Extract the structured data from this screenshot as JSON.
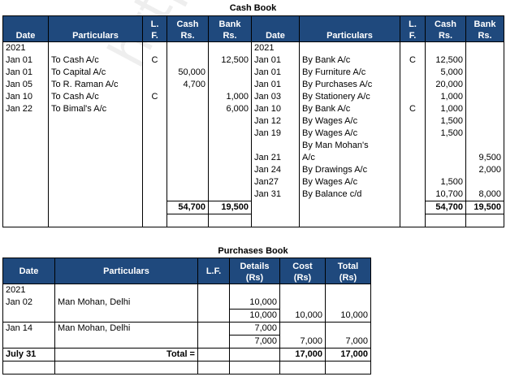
{
  "cash_book": {
    "title": "Cash Book",
    "headers": {
      "date": "Date",
      "particulars": "Particulars",
      "lf_1": "L.",
      "lf_2": "F.",
      "cash_1": "Cash",
      "cash_2": "Rs.",
      "bank_1": "Bank",
      "bank_2": "Rs."
    },
    "rows": [
      {
        "d_date": "2021",
        "d_part": "",
        "d_lf": "",
        "d_cash": "",
        "d_bank": "",
        "c_date": "2021",
        "c_part": "",
        "c_lf": "",
        "c_cash": "",
        "c_bank": ""
      },
      {
        "d_date": "Jan 01",
        "d_part": "To Cash A/c",
        "d_lf": "C",
        "d_cash": "",
        "d_bank": "12,500",
        "c_date": "Jan 01",
        "c_part": "By Bank A/c",
        "c_lf": "C",
        "c_cash": "12,500",
        "c_bank": ""
      },
      {
        "d_date": "Jan 01",
        "d_part": "To Capital A/c",
        "d_lf": "",
        "d_cash": "50,000",
        "d_bank": "",
        "c_date": "Jan 01",
        "c_part": "By Furniture A/c",
        "c_lf": "",
        "c_cash": "5,000",
        "c_bank": ""
      },
      {
        "d_date": "Jan 05",
        "d_part": "To R. Raman A/c",
        "d_lf": "",
        "d_cash": "4,700",
        "d_bank": "",
        "c_date": "Jan 01",
        "c_part": "By Purchases A/c",
        "c_lf": "",
        "c_cash": "20,000",
        "c_bank": ""
      },
      {
        "d_date": "Jan 10",
        "d_part": "To Cash A/c",
        "d_lf": "C",
        "d_cash": "",
        "d_bank": "1,000",
        "c_date": "Jan 03",
        "c_part": "By Stationery A/c",
        "c_lf": "",
        "c_cash": "1,000",
        "c_bank": ""
      },
      {
        "d_date": "Jan 22",
        "d_part": "To Bimal's A/c",
        "d_lf": "",
        "d_cash": "",
        "d_bank": "6,000",
        "c_date": "Jan 10",
        "c_part": "By Bank A/c",
        "c_lf": "C",
        "c_cash": "1,000",
        "c_bank": ""
      },
      {
        "d_date": "",
        "d_part": "",
        "d_lf": "",
        "d_cash": "",
        "d_bank": "",
        "c_date": "Jan 12",
        "c_part": "By Wages A/c",
        "c_lf": "",
        "c_cash": "1,500",
        "c_bank": ""
      },
      {
        "d_date": "",
        "d_part": "",
        "d_lf": "",
        "d_cash": "",
        "d_bank": "",
        "c_date": "Jan 19",
        "c_part": "By Wages A/c",
        "c_lf": "",
        "c_cash": "1,500",
        "c_bank": ""
      },
      {
        "d_date": "",
        "d_part": "",
        "d_lf": "",
        "d_cash": "",
        "d_bank": "",
        "c_date": "",
        "c_part": "By Man Mohan's",
        "c_lf": "",
        "c_cash": "",
        "c_bank": ""
      },
      {
        "d_date": "",
        "d_part": "",
        "d_lf": "",
        "d_cash": "",
        "d_bank": "",
        "c_date": "Jan 21",
        "c_part": "A/c",
        "c_lf": "",
        "c_cash": "",
        "c_bank": "9,500"
      },
      {
        "d_date": "",
        "d_part": "",
        "d_lf": "",
        "d_cash": "",
        "d_bank": "",
        "c_date": "Jan 24",
        "c_part": "By Drawings A/c",
        "c_lf": "",
        "c_cash": "",
        "c_bank": "2,000"
      },
      {
        "d_date": "",
        "d_part": "",
        "d_lf": "",
        "d_cash": "",
        "d_bank": "",
        "c_date": "Jan27",
        "c_part": "By Wages A/c",
        "c_lf": "",
        "c_cash": "1,500",
        "c_bank": ""
      },
      {
        "d_date": "",
        "d_part": "",
        "d_lf": "",
        "d_cash": "",
        "d_bank": "",
        "c_date": "Jan 31",
        "c_part": "By Balance c/d",
        "c_lf": "",
        "c_cash": "10,700",
        "c_bank": "8,000"
      }
    ],
    "totals": {
      "d_cash": "54,700",
      "d_bank": "19,500",
      "c_cash": "54,700",
      "c_bank": "19,500"
    }
  },
  "purchases_book": {
    "title": "Purchases Book",
    "headers": {
      "date": "Date",
      "particulars": "Particulars",
      "lf": "L.F.",
      "details_1": "Details",
      "details_2": "(Rs)",
      "cost_1": "Cost",
      "cost_2": "(Rs)",
      "total_1": "Total",
      "total_2": "(Rs)"
    },
    "rows": [
      {
        "date": "2021",
        "part": "",
        "lf": "",
        "details": "",
        "cost": "",
        "total": ""
      },
      {
        "date": "Jan 02",
        "part": "Man Mohan, Delhi",
        "lf": "",
        "details": "10,000",
        "cost": "",
        "total": ""
      },
      {
        "date": "",
        "part": "",
        "lf": "",
        "details": "10,000",
        "cost": "10,000",
        "total": "10,000"
      },
      {
        "date": "Jan 14",
        "part": "Man Mohan, Delhi",
        "lf": "",
        "details": "7,000",
        "cost": "",
        "total": ""
      },
      {
        "date": "",
        "part": "",
        "lf": "",
        "details": "7,000",
        "cost": "7,000",
        "total": "7,000"
      }
    ],
    "total_row": {
      "date": "July 31",
      "part": "Total =",
      "cost": "17,000",
      "total": "17,000"
    }
  },
  "watermark": "https://www.tutorialsday.co"
}
